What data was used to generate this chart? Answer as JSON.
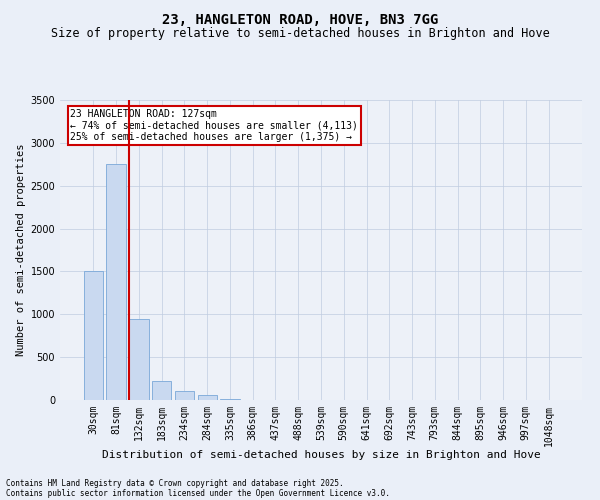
{
  "title1": "23, HANGLETON ROAD, HOVE, BN3 7GG",
  "title2": "Size of property relative to semi-detached houses in Brighton and Hove",
  "xlabel": "Distribution of semi-detached houses by size in Brighton and Hove",
  "ylabel": "Number of semi-detached properties",
  "bar_labels": [
    "30sqm",
    "81sqm",
    "132sqm",
    "183sqm",
    "234sqm",
    "284sqm",
    "335sqm",
    "386sqm",
    "437sqm",
    "488sqm",
    "539sqm",
    "590sqm",
    "641sqm",
    "692sqm",
    "743sqm",
    "793sqm",
    "844sqm",
    "895sqm",
    "946sqm",
    "997sqm",
    "1048sqm"
  ],
  "bar_values": [
    1500,
    2750,
    950,
    220,
    110,
    60,
    10,
    2,
    0,
    0,
    0,
    0,
    0,
    0,
    0,
    0,
    0,
    0,
    0,
    0,
    0
  ],
  "bar_color": "#c9d9f0",
  "bar_edge_color": "#7aa8d8",
  "highlight_line_color": "#cc0000",
  "highlight_line_index": 1.575,
  "ylim": [
    0,
    3500
  ],
  "yticks": [
    0,
    500,
    1000,
    1500,
    2000,
    2500,
    3000,
    3500
  ],
  "annotation_text": "23 HANGLETON ROAD: 127sqm\n← 74% of semi-detached houses are smaller (4,113)\n25% of semi-detached houses are larger (1,375) →",
  "annotation_box_facecolor": "#ffffff",
  "annotation_box_edgecolor": "#cc0000",
  "footer1": "Contains HM Land Registry data © Crown copyright and database right 2025.",
  "footer2": "Contains public sector information licensed under the Open Government Licence v3.0.",
  "bg_color": "#eaeff8",
  "plot_bg_color": "#edf1f8",
  "title1_fontsize": 10,
  "title2_fontsize": 8.5,
  "xlabel_fontsize": 8,
  "ylabel_fontsize": 7.5,
  "tick_fontsize": 7,
  "annotation_fontsize": 7,
  "footer_fontsize": 5.5,
  "grid_color": "#c0cce0"
}
